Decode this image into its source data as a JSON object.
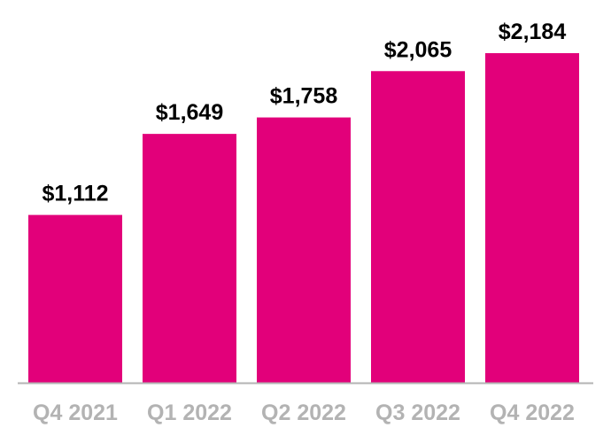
{
  "colors": {
    "bar": "#e2007a",
    "axis": "#b3b3b3",
    "value_text": "#000000",
    "category_text": "#b3b3b3"
  },
  "chart_data": {
    "type": "bar",
    "categories": [
      "Q4 2021",
      "Q1 2022",
      "Q2 2022",
      "Q3 2022",
      "Q4 2022"
    ],
    "values": [
      1112,
      1649,
      1758,
      2065,
      2184
    ],
    "value_labels": [
      "$1,112",
      "$1,649",
      "$1,758",
      "$2,065",
      "$2,184"
    ],
    "title": "",
    "xlabel": "",
    "ylabel": "",
    "ylim": [
      0,
      2184
    ],
    "grid": false,
    "legend": "none"
  }
}
